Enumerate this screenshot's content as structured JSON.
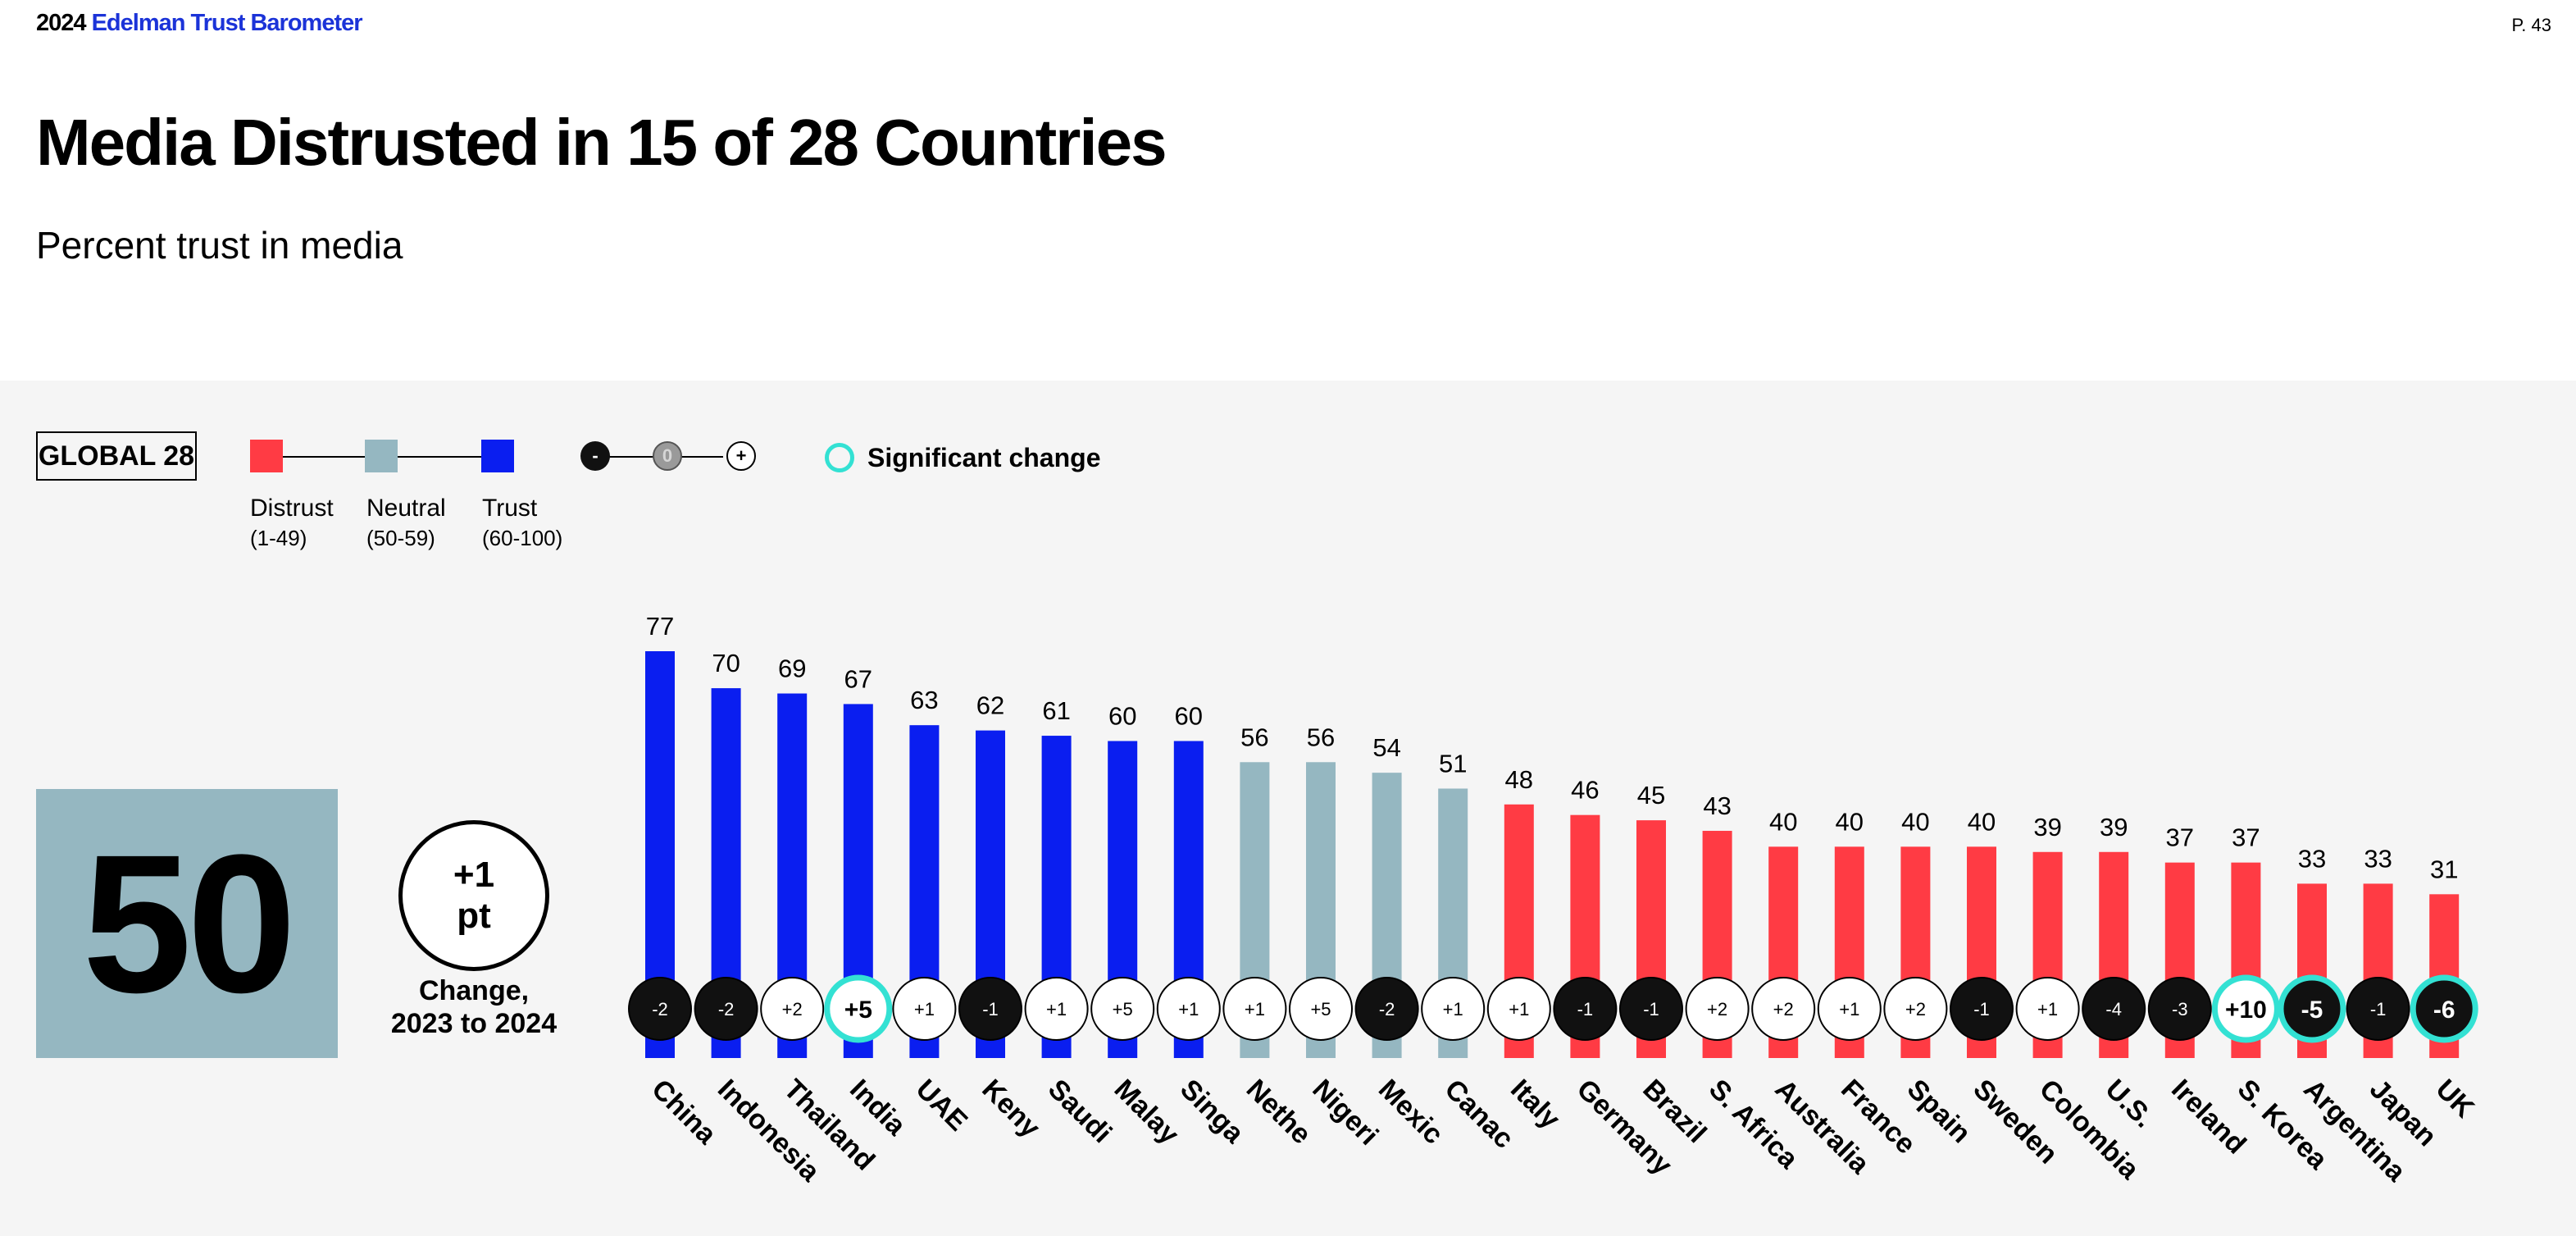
{
  "header": {
    "brand_year": "2024",
    "brand_name": "Edelman Trust Barometer",
    "page_number": "P. 43"
  },
  "title": "Media Distrusted in 15 of 28 Countries",
  "subtitle": "Percent trust in media",
  "legend": {
    "global_label": "GLOBAL 28",
    "categories": [
      {
        "label": "Distrust",
        "range": "(1-49)",
        "color": "#ff3b44"
      },
      {
        "label": "Neutral",
        "range": "(50-59)",
        "color": "#95b7c1"
      },
      {
        "label": "Trust",
        "range": "(60-100)",
        "color": "#0a1ef0"
      }
    ],
    "change_symbols": [
      "-",
      "0",
      "+"
    ],
    "significant_label": "Significant change",
    "significant_color": "#33e1d3"
  },
  "global": {
    "value": "50",
    "change_value": "+1",
    "change_unit": "pt",
    "change_label_line1": "Change,",
    "change_label_line2": "2023 to 2024"
  },
  "chart_data": {
    "type": "bar",
    "title": "Media Distrusted in 15 of 28 Countries",
    "subtitle": "Percent trust in media",
    "ylim": [
      0,
      100
    ],
    "categories": [
      "China",
      "Indonesia",
      "Thailand",
      "India",
      "UAE",
      "Kenya",
      "Saudi Arabia",
      "Malaysia",
      "Singapore",
      "Netherlands",
      "Nigeria",
      "Mexico",
      "Canada",
      "Italy",
      "Germany",
      "Brazil",
      "S. Africa",
      "Australia",
      "France",
      "Spain",
      "Sweden",
      "Colombia",
      "U.S.",
      "Ireland",
      "S. Korea",
      "Argentina",
      "Japan",
      "UK"
    ],
    "visible_labels": [
      "China",
      "Indonesia",
      "Thailand",
      "India",
      "UAE",
      "Keny",
      "Saudi",
      "Malay",
      "Singa",
      "Nethe",
      "Nigeri",
      "Mexic",
      "Canac",
      "Italy",
      "Germany",
      "Brazil",
      "S. Africa",
      "Australia",
      "France",
      "Spain",
      "Sweden",
      "Colombia",
      "U.S.",
      "Ireland",
      "S. Korea",
      "Argentina",
      "Japan",
      "UK"
    ],
    "values": [
      77,
      70,
      69,
      67,
      63,
      62,
      61,
      60,
      60,
      56,
      56,
      54,
      51,
      48,
      46,
      45,
      43,
      40,
      40,
      40,
      40,
      39,
      39,
      37,
      37,
      33,
      33,
      31
    ],
    "changes": [
      "-2",
      "-2",
      "+2",
      "+5",
      "+1",
      "-1",
      "+1",
      "+5",
      "+1",
      "+1",
      "+5",
      "-2",
      "+1",
      "+1",
      "-1",
      "-1",
      "+2",
      "+2",
      "+1",
      "+2",
      "-1",
      "+1",
      "-4",
      "-3",
      "+10",
      "-5",
      "-1",
      "-6"
    ],
    "significant": [
      false,
      false,
      false,
      true,
      false,
      false,
      false,
      false,
      false,
      false,
      false,
      false,
      false,
      false,
      false,
      false,
      false,
      false,
      false,
      false,
      false,
      false,
      false,
      false,
      true,
      true,
      false,
      true
    ],
    "thresholds": {
      "distrust_max": 49,
      "neutral_max": 59
    }
  }
}
